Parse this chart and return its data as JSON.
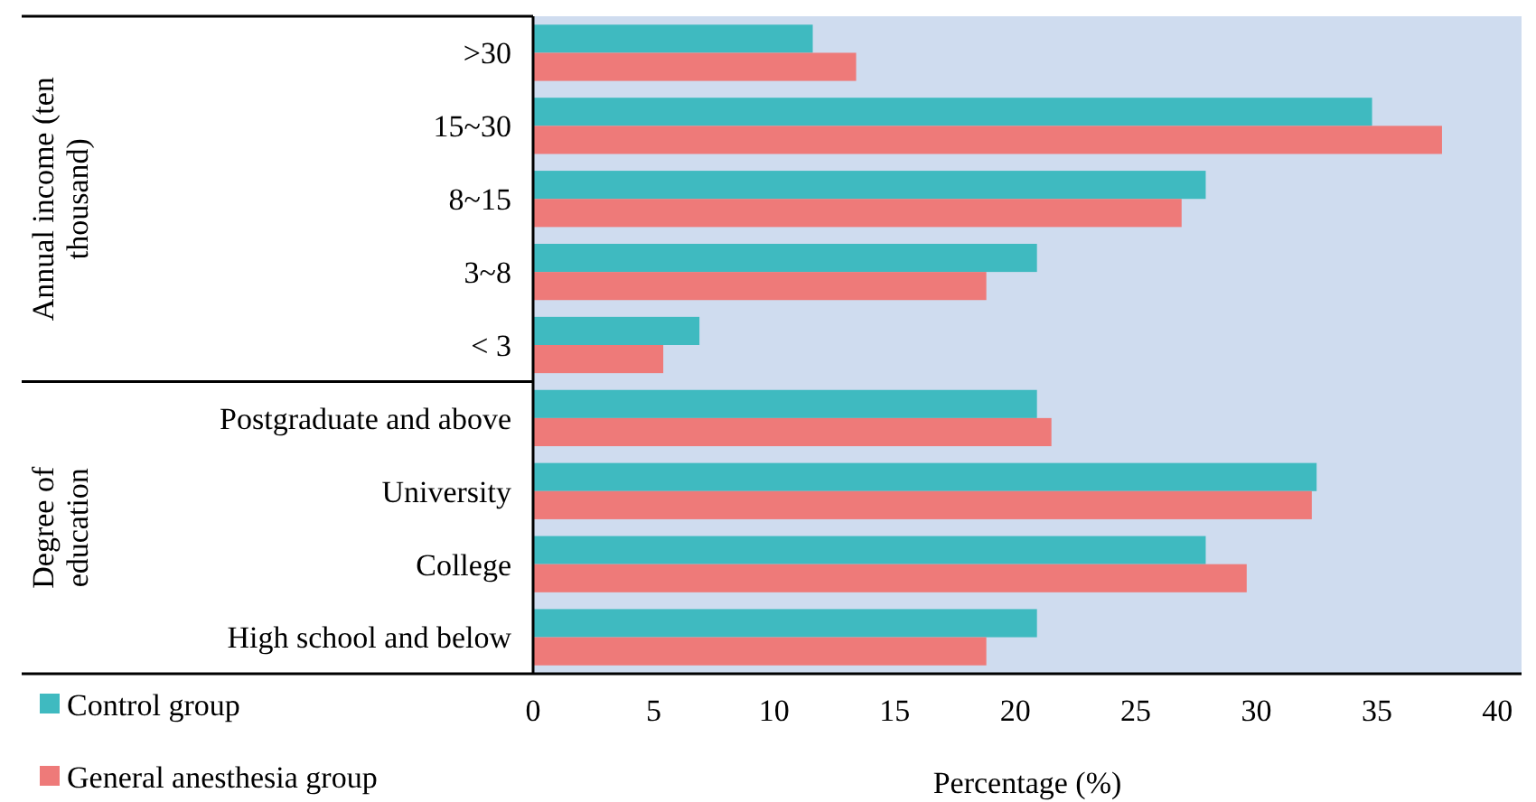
{
  "chart_data": {
    "type": "bar",
    "orientation": "horizontal",
    "xlabel": "Percentage (%)",
    "categories": [
      ">30",
      "15~30",
      "8~15",
      "3~8",
      "< 3",
      "Postgraduate and above",
      "University",
      "College",
      "High school and below"
    ],
    "series": [
      {
        "name": "Control group",
        "color": "#3fbac0",
        "values": [
          11.6,
          34.8,
          27.9,
          20.9,
          6.9,
          20.9,
          32.5,
          27.9,
          20.9
        ]
      },
      {
        "name": "General anesthesia group",
        "color": "#ee7a79",
        "values": [
          13.4,
          37.7,
          26.9,
          18.8,
          5.4,
          21.5,
          32.3,
          29.6,
          18.8
        ]
      }
    ],
    "xlim": [
      0,
      41
    ],
    "xticks": [
      0,
      5,
      10,
      15,
      20,
      25,
      30,
      35,
      40
    ],
    "annotations": [
      "Annual income (ten thousand)",
      "Degree of education"
    ],
    "legend": "bottom left",
    "grid": false
  }
}
